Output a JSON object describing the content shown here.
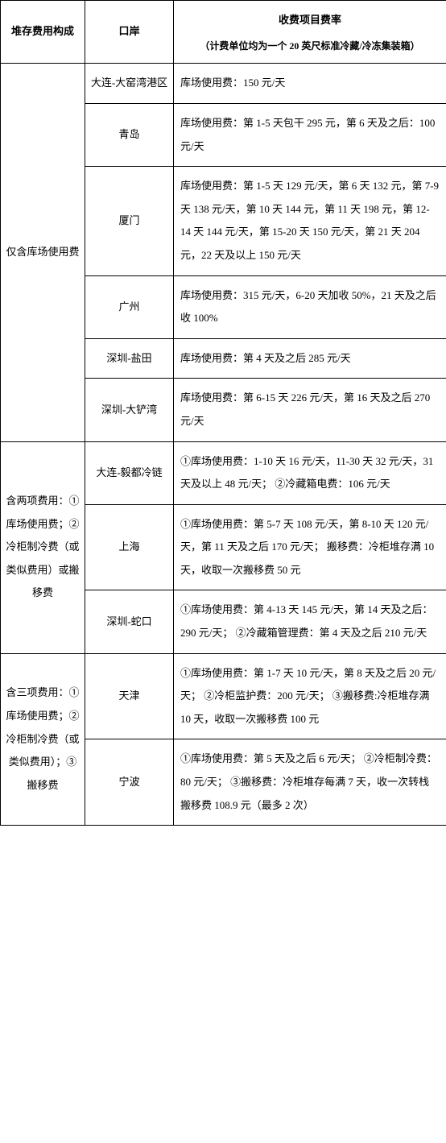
{
  "headers": {
    "col1": "堆存费用构成",
    "col2": "口岸",
    "col3_main": "收费项目费率",
    "col3_sub": "（计费单位均为一个 20 英尺标准冷藏/冷冻集装箱）"
  },
  "sections": [
    {
      "category": "仅含库场使用费",
      "rows": [
        {
          "port": "大连-大窑湾港区",
          "rate": "库场使用费：150 元/天"
        },
        {
          "port": "青岛",
          "rate": "库场使用费：第 1-5 天包干 295 元，第 6 天及之后：100 元/天"
        },
        {
          "port": "厦门",
          "rate": "库场使用费：第 1-5 天 129 元/天，第 6 天 132 元，第 7-9 天 138 元/天，第 10 天 144 元，第 11 天 198 元，第 12-14 天 144 元/天，第 15-20 天 150 元/天，第 21 天 204 元，22 天及以上 150 元/天"
        },
        {
          "port": "广州",
          "rate": "库场使用费：315 元/天，6-20 天加收 50%，21 天及之后收 100%"
        },
        {
          "port": "深圳-盐田",
          "rate": "库场使用费：第 4 天及之后 285 元/天"
        },
        {
          "port": "深圳-大铲湾",
          "rate": "库场使用费：第 6-15 天 226 元/天，第 16 天及之后 270 元/天"
        }
      ]
    },
    {
      "category": "含两项费用：①库场使用费；②冷柜制冷费（或类似费用）或搬移费",
      "rows": [
        {
          "port": "大连-毅都冷链",
          "rate": "①库场使用费：1-10 天 16 元/天，11-30 天 32 元/天，31 天及以上 48 元/天；\n②冷藏箱电费：106 元/天"
        },
        {
          "port": "上海",
          "rate": "①库场使用费：第 5-7 天 108 元/天，第 8-10 天 120 元/天，第 11 天及之后 170 元/天；\n搬移费：冷柜堆存满 10 天，收取一次搬移费 50 元"
        },
        {
          "port": "深圳-蛇口",
          "rate": "①库场使用费：第 4-13 天 145 元/天，第 14 天及之后：290 元/天；\n②冷藏箱管理费：第 4 天及之后 210 元/天"
        }
      ]
    },
    {
      "category": "含三项费用：①库场使用费；②冷柜制冷费（或类似费用）；③搬移费",
      "rows": [
        {
          "port": "天津",
          "rate": "①库场使用费：第 1-7 天 10 元/天，第 8 天及之后 20 元/天；\n②冷柜监护费：200 元/天；\n③搬移费:冷柜堆存满 10 天，收取一次搬移费 100 元"
        },
        {
          "port": "宁波",
          "rate": "①库场使用费：第 5 天及之后 6 元/天；\n②冷柜制冷费：80 元/天；\n③搬移费：冷柜堆存每满 7 天，收一次转栈搬移费 108.9 元（最多 2 次）"
        }
      ]
    }
  ],
  "style": {
    "border_color": "#000000",
    "background_color": "#ffffff",
    "text_color": "#000000",
    "font_size_body": 13,
    "font_size_sub": 12,
    "line_height": 2.2
  }
}
